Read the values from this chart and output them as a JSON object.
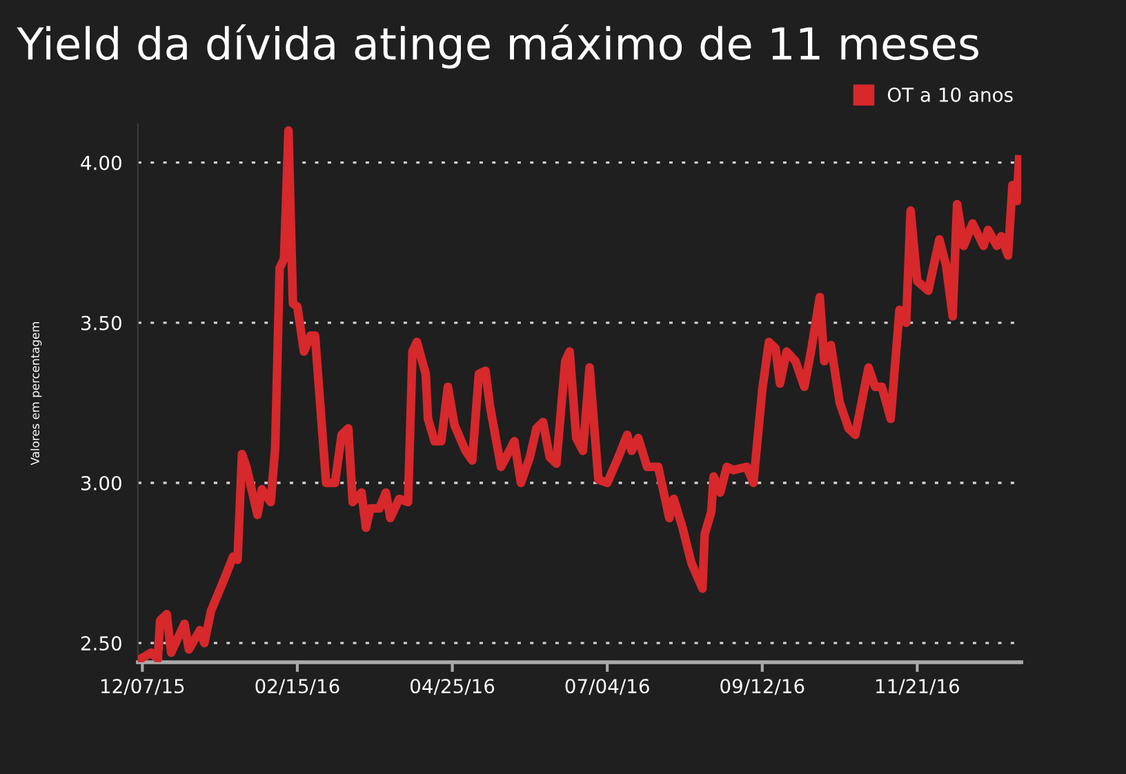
{
  "chart_data": {
    "type": "line",
    "title": "Yield da dívida atinge máximo de 11 meses",
    "ylabel": "Valores em percentagem",
    "x": [
      "2015-12-06",
      "2015-12-11",
      "2015-12-14",
      "2015-12-15",
      "2015-12-18",
      "2015-12-20",
      "2015-12-26",
      "2015-12-28",
      "2016-01-02",
      "2016-01-04",
      "2016-01-07",
      "2016-01-13",
      "2016-01-17",
      "2016-01-19",
      "2016-01-21",
      "2016-01-23",
      "2016-01-28",
      "2016-01-30",
      "2016-02-03",
      "2016-02-05",
      "2016-02-07",
      "2016-02-09",
      "2016-02-11",
      "2016-02-13",
      "2016-02-15",
      "2016-02-18",
      "2016-02-21",
      "2016-02-23",
      "2016-02-28",
      "2016-03-03",
      "2016-03-06",
      "2016-03-09",
      "2016-03-11",
      "2016-03-15",
      "2016-03-17",
      "2016-03-19",
      "2016-03-23",
      "2016-03-26",
      "2016-03-28",
      "2016-04-01",
      "2016-04-05",
      "2016-04-07",
      "2016-04-09",
      "2016-04-13",
      "2016-04-14",
      "2016-04-17",
      "2016-04-20",
      "2016-04-23",
      "2016-04-26",
      "2016-05-01",
      "2016-05-04",
      "2016-05-07",
      "2016-05-10",
      "2016-05-12",
      "2016-05-17",
      "2016-05-23",
      "2016-05-26",
      "2016-05-30",
      "2016-06-02",
      "2016-06-05",
      "2016-06-08",
      "2016-06-11",
      "2016-06-15",
      "2016-06-17",
      "2016-06-20",
      "2016-06-23",
      "2016-06-26",
      "2016-06-30",
      "2016-07-04",
      "2016-07-09",
      "2016-07-13",
      "2016-07-15",
      "2016-07-18",
      "2016-07-22",
      "2016-07-27",
      "2016-08-01",
      "2016-08-03",
      "2016-08-07",
      "2016-08-11",
      "2016-08-16",
      "2016-08-17",
      "2016-08-20",
      "2016-08-21",
      "2016-08-24",
      "2016-08-27",
      "2016-08-30",
      "2016-09-05",
      "2016-09-08",
      "2016-09-12",
      "2016-09-15",
      "2016-09-18",
      "2016-09-20",
      "2016-09-23",
      "2016-09-27",
      "2016-10-01",
      "2016-10-04",
      "2016-10-08",
      "2016-10-10",
      "2016-10-13",
      "2016-10-17",
      "2016-10-21",
      "2016-10-24",
      "2016-10-30",
      "2016-11-02",
      "2016-11-05",
      "2016-11-09",
      "2016-11-13",
      "2016-11-16",
      "2016-11-18",
      "2016-11-21",
      "2016-11-26",
      "2016-12-01",
      "2016-12-04",
      "2016-12-07",
      "2016-12-09",
      "2016-12-12",
      "2016-12-16",
      "2016-12-21",
      "2016-12-23",
      "2016-12-27",
      "2016-12-29",
      "2017-01-01",
      "2017-01-03",
      "2017-01-05",
      "2017-01-06"
    ],
    "series": [
      {
        "name": "OT a 10 anos",
        "color": "#d7282c",
        "values": [
          2.45,
          2.47,
          2.45,
          2.57,
          2.59,
          2.47,
          2.56,
          2.48,
          2.54,
          2.5,
          2.6,
          2.7,
          2.77,
          2.76,
          3.09,
          3.05,
          2.9,
          2.98,
          2.94,
          3.11,
          3.67,
          3.7,
          4.1,
          3.56,
          3.55,
          3.41,
          3.46,
          3.46,
          3.0,
          3.0,
          3.15,
          3.17,
          2.94,
          2.97,
          2.86,
          2.92,
          2.92,
          2.97,
          2.89,
          2.95,
          2.94,
          3.41,
          3.44,
          3.34,
          3.2,
          3.13,
          3.13,
          3.3,
          3.18,
          3.1,
          3.07,
          3.34,
          3.35,
          3.24,
          3.05,
          3.13,
          3.0,
          3.08,
          3.17,
          3.19,
          3.08,
          3.06,
          3.38,
          3.41,
          3.14,
          3.1,
          3.36,
          3.01,
          3.0,
          3.08,
          3.15,
          3.1,
          3.14,
          3.05,
          3.05,
          2.89,
          2.95,
          2.86,
          2.75,
          2.67,
          2.84,
          2.91,
          3.02,
          2.97,
          3.05,
          3.04,
          3.05,
          3.0,
          3.29,
          3.44,
          3.42,
          3.31,
          3.41,
          3.38,
          3.3,
          3.41,
          3.58,
          3.38,
          3.43,
          3.25,
          3.17,
          3.15,
          3.36,
          3.3,
          3.3,
          3.2,
          3.54,
          3.5,
          3.85,
          3.63,
          3.6,
          3.76,
          3.68,
          3.52,
          3.87,
          3.74,
          3.81,
          3.74,
          3.79,
          3.74,
          3.77,
          3.71,
          3.93,
          3.88,
          4.01
        ]
      }
    ],
    "xlim": [
      "2015-12-05",
      "2017-01-07"
    ],
    "xticks": [
      {
        "value": "2015-12-07",
        "label": "12/07/15"
      },
      {
        "value": "2016-02-15",
        "label": "02/15/16"
      },
      {
        "value": "2016-04-25",
        "label": "04/25/16"
      },
      {
        "value": "2016-07-04",
        "label": "07/04/16"
      },
      {
        "value": "2016-09-12",
        "label": "09/12/16"
      },
      {
        "value": "2016-11-21",
        "label": "11/21/16"
      }
    ],
    "ylim": [
      2.44,
      4.12
    ],
    "yticks": [
      {
        "value": 2.5,
        "label": "2.50"
      },
      {
        "value": 3.0,
        "label": "3.00"
      },
      {
        "value": 3.5,
        "label": "3.50"
      },
      {
        "value": 4.0,
        "label": "4.00"
      }
    ],
    "grid": "y",
    "legend": "top right",
    "marker": "none",
    "line_style": "solid"
  }
}
